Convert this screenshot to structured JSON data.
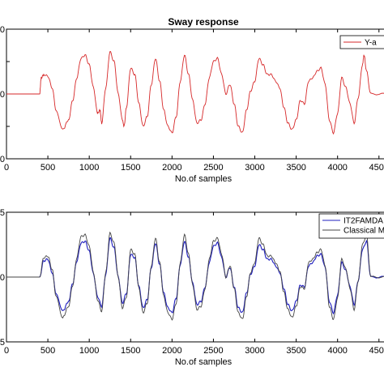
{
  "chart_data": [
    {
      "type": "line",
      "title": "Sway response",
      "xlabel": "No.of samples",
      "ylabel": "",
      "xlim": [
        0,
        4600
      ],
      "ylim": [
        -2,
        2
      ],
      "xticks": [
        "0",
        "500",
        "1000",
        "1500",
        "2000",
        "2500",
        "3000",
        "3500",
        "4000",
        "4500"
      ],
      "yticks": [
        "0",
        "",
        "0",
        "",
        "0"
      ],
      "legend": {
        "position": "top-right",
        "entries": [
          "Y-a"
        ]
      },
      "series": [
        {
          "name": "Y-a",
          "color": "#d62728",
          "x": [
            0,
            400,
            420,
            450,
            500,
            550,
            600,
            680,
            750,
            800,
            850,
            900,
            950,
            1000,
            1050,
            1100,
            1130,
            1150,
            1200,
            1250,
            1300,
            1350,
            1400,
            1420,
            1450,
            1500,
            1550,
            1600,
            1650,
            1700,
            1750,
            1800,
            1850,
            1900,
            1950,
            2000,
            2050,
            2100,
            2150,
            2200,
            2250,
            2300,
            2350,
            2400,
            2450,
            2500,
            2550,
            2600,
            2650,
            2700,
            2750,
            2800,
            2850,
            2900,
            2950,
            3000,
            3050,
            3100,
            3150,
            3200,
            3250,
            3300,
            3350,
            3400,
            3450,
            3500,
            3550,
            3600,
            3650,
            3700,
            3750,
            3800,
            3850,
            3900,
            3950,
            4000,
            4050,
            4100,
            4150,
            4200,
            4250,
            4300,
            4320,
            4350,
            4400,
            4600
          ],
          "y": [
            0,
            0,
            0.5,
            0.6,
            0.55,
            0.2,
            -0.5,
            -1.1,
            -0.8,
            -0.2,
            0.5,
            1.1,
            1.2,
            0.9,
            0.2,
            -0.6,
            -0.5,
            -0.9,
            0.2,
            1.3,
            1.0,
            0.0,
            -0.8,
            -1.0,
            -0.4,
            0.8,
            0.6,
            -0.3,
            -1.0,
            -0.7,
            0.3,
            1.1,
            0.4,
            -0.5,
            -1.0,
            -1.2,
            -0.7,
            0.4,
            1.2,
            0.6,
            -0.2,
            -0.9,
            -0.8,
            -0.3,
            0.5,
            1.0,
            1.1,
            0.6,
            0.0,
            0.3,
            -0.3,
            -1.0,
            -1.2,
            -0.5,
            0.1,
            0.4,
            1.1,
            0.9,
            0.6,
            0.6,
            0.4,
            0.2,
            -0.4,
            -0.9,
            -1.1,
            -0.8,
            -0.2,
            -0.3,
            0.4,
            0.5,
            0.7,
            0.8,
            0.3,
            -0.8,
            -1.2,
            -0.6,
            0.5,
            0.2,
            -0.3,
            -0.9,
            -0.1,
            0.9,
            1.2,
            0.7,
            0.0,
            0.0
          ]
        }
      ]
    },
    {
      "type": "line",
      "title": "",
      "xlabel": "No.of samples",
      "ylabel": "",
      "xlim": [
        0,
        4600
      ],
      "ylim": [
        -2,
        2
      ],
      "xticks": [
        "0",
        "500",
        "1000",
        "1500",
        "2000",
        "2500",
        "3000",
        "3500",
        "4000",
        "4500"
      ],
      "yticks": [
        "5",
        "0",
        "5"
      ],
      "legend": {
        "position": "top-right",
        "entries": [
          "IT2FAMDA",
          "Classical M"
        ]
      },
      "series": [
        {
          "name": "IT2FAMDA",
          "color": "#1f1fbf",
          "x": [
            0,
            400,
            450,
            500,
            550,
            600,
            680,
            750,
            800,
            850,
            900,
            950,
            1000,
            1050,
            1100,
            1150,
            1200,
            1250,
            1300,
            1350,
            1400,
            1450,
            1500,
            1550,
            1600,
            1650,
            1700,
            1750,
            1800,
            1850,
            1900,
            1950,
            2000,
            2050,
            2100,
            2150,
            2200,
            2250,
            2300,
            2350,
            2400,
            2450,
            2500,
            2550,
            2600,
            2650,
            2700,
            2750,
            2800,
            2850,
            2900,
            2950,
            3000,
            3050,
            3100,
            3150,
            3200,
            3250,
            3300,
            3350,
            3400,
            3450,
            3500,
            3550,
            3600,
            3650,
            3700,
            3750,
            3800,
            3850,
            3900,
            3950,
            4000,
            4050,
            4100,
            4150,
            4200,
            4250,
            4300,
            4350,
            4400,
            4600
          ],
          "y": [
            0,
            0,
            0.5,
            0.55,
            0.15,
            -0.5,
            -1.05,
            -0.75,
            -0.2,
            0.5,
            1.05,
            1.1,
            0.8,
            0.1,
            -0.6,
            -0.9,
            0.1,
            1.2,
            0.9,
            0.0,
            -0.8,
            -0.5,
            0.7,
            0.6,
            -0.3,
            -0.95,
            -0.7,
            0.3,
            1.05,
            0.4,
            -0.5,
            -0.95,
            -1.1,
            -0.65,
            0.4,
            1.1,
            0.6,
            -0.2,
            -0.85,
            -0.75,
            -0.3,
            0.45,
            0.95,
            1.05,
            0.6,
            0.0,
            0.3,
            -0.3,
            -0.95,
            -1.1,
            -0.5,
            0.1,
            0.35,
            1.0,
            0.85,
            0.55,
            0.55,
            0.35,
            0.15,
            -0.35,
            -0.85,
            -1.05,
            -0.75,
            -0.25,
            -0.3,
            0.35,
            0.45,
            0.65,
            0.7,
            0.3,
            -0.75,
            -1.1,
            -0.55,
            0.45,
            0.2,
            -0.3,
            -0.85,
            -0.1,
            0.85,
            1.1,
            0.0,
            0.0
          ]
        },
        {
          "name": "Classical M",
          "color": "#444444",
          "x": [
            0,
            400,
            450,
            500,
            550,
            600,
            680,
            750,
            800,
            850,
            900,
            950,
            1000,
            1050,
            1100,
            1150,
            1200,
            1250,
            1300,
            1350,
            1400,
            1450,
            1500,
            1550,
            1600,
            1650,
            1700,
            1750,
            1800,
            1850,
            1900,
            1950,
            2000,
            2050,
            2100,
            2150,
            2200,
            2250,
            2300,
            2350,
            2400,
            2450,
            2500,
            2550,
            2600,
            2650,
            2700,
            2750,
            2800,
            2850,
            2900,
            2950,
            3000,
            3050,
            3100,
            3150,
            3200,
            3250,
            3300,
            3350,
            3400,
            3450,
            3500,
            3550,
            3600,
            3650,
            3700,
            3750,
            3800,
            3850,
            3900,
            3950,
            4000,
            4050,
            4100,
            4150,
            4200,
            4250,
            4300,
            4350,
            4400,
            4600
          ],
          "y": [
            0,
            0,
            0.6,
            0.65,
            0.25,
            -0.6,
            -1.25,
            -0.9,
            -0.25,
            0.6,
            1.25,
            1.3,
            0.95,
            0.15,
            -0.7,
            -1.05,
            0.15,
            1.35,
            1.05,
            0.0,
            -0.95,
            -0.6,
            0.85,
            0.7,
            -0.35,
            -1.1,
            -0.8,
            0.35,
            1.2,
            0.45,
            -0.6,
            -1.1,
            -1.3,
            -0.8,
            0.45,
            1.3,
            0.7,
            -0.25,
            -1.0,
            -0.9,
            -0.35,
            0.55,
            1.1,
            1.2,
            0.7,
            0.0,
            0.35,
            -0.35,
            -1.1,
            -1.3,
            -0.6,
            0.15,
            0.45,
            1.2,
            1.0,
            0.65,
            0.65,
            0.45,
            0.2,
            -0.45,
            -1.0,
            -1.25,
            -0.9,
            -0.3,
            -0.35,
            0.45,
            0.55,
            0.75,
            0.85,
            0.35,
            -0.9,
            -1.3,
            -0.65,
            0.55,
            0.25,
            -0.35,
            -1.0,
            -0.1,
            1.0,
            1.3,
            0.0,
            0.0
          ]
        }
      ]
    }
  ]
}
